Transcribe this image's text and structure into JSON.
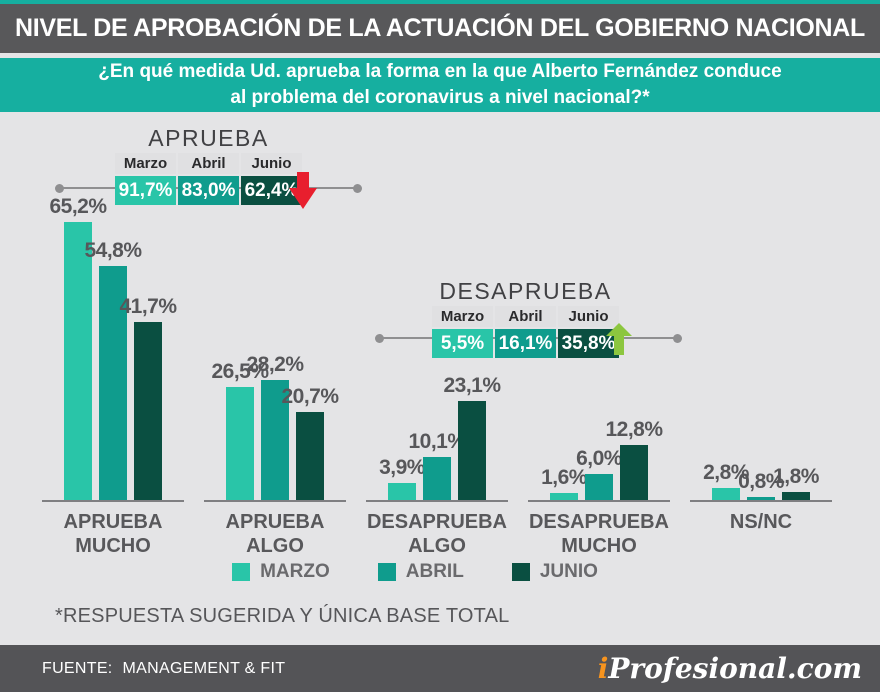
{
  "colors": {
    "banner_teal": "#16AFA0",
    "header_gray": "#58585A",
    "page_bg": "#E4E4E6",
    "footer_gray": "#545457",
    "down_arrow_red": "#E81F2E",
    "up_arrow_green": "#8CC63F",
    "brand_orange": "#F7941E",
    "marzo": "#29C5A8",
    "abril": "#0F9C8D",
    "junio": "#0A4F41"
  },
  "header": {
    "title": "NIVEL DE APROBACIÓN DE LA ACTUACIÓN DEL GOBIERNO NACIONAL"
  },
  "banner": {
    "line1": "¿En qué medida Ud. aprueba la forma en la que Alberto Fernández conduce",
    "line2": "al problema del coronavirus a nivel nacional?*"
  },
  "summary_tables": [
    {
      "title": "APRUEBA",
      "columns": [
        "Marzo",
        "Abril",
        "Junio"
      ],
      "values": [
        "91,7%",
        "83,0%",
        "62,4%"
      ],
      "trend": "down"
    },
    {
      "title": "DESAPRUEBA",
      "columns": [
        "Marzo",
        "Abril",
        "Junio"
      ],
      "values": [
        "5,5%",
        "16,1%",
        "35,8%"
      ],
      "trend": "up"
    }
  ],
  "chart_data": {
    "type": "bar",
    "categories": [
      "APRUEBA MUCHO",
      "APRUEBA ALGO",
      "DESAPRUEBA ALGO",
      "DESAPRUEBA MUCHO",
      "NS/NC"
    ],
    "series": [
      {
        "name": "MARZO",
        "color": "#29C5A8",
        "values": [
          65.2,
          26.5,
          3.9,
          1.6,
          2.8
        ]
      },
      {
        "name": "ABRIL",
        "color": "#0F9C8D",
        "values": [
          54.8,
          28.2,
          10.1,
          6.0,
          0.8
        ]
      },
      {
        "name": "JUNIO",
        "color": "#0A4F41",
        "values": [
          41.7,
          20.7,
          23.1,
          12.8,
          1.8
        ]
      }
    ],
    "value_suffix": "%",
    "decimal_separator": ",",
    "ylim": [
      0,
      70
    ],
    "grid": false,
    "legend_position": "bottom"
  },
  "footnote": "*RESPUESTA SUGERIDA Y ÚNICA BASE TOTAL",
  "footer": {
    "source_label": "FUENTE:",
    "source": "MANAGEMENT & FIT",
    "brand_i": "i",
    "brand_rest": "Profesional.com"
  }
}
